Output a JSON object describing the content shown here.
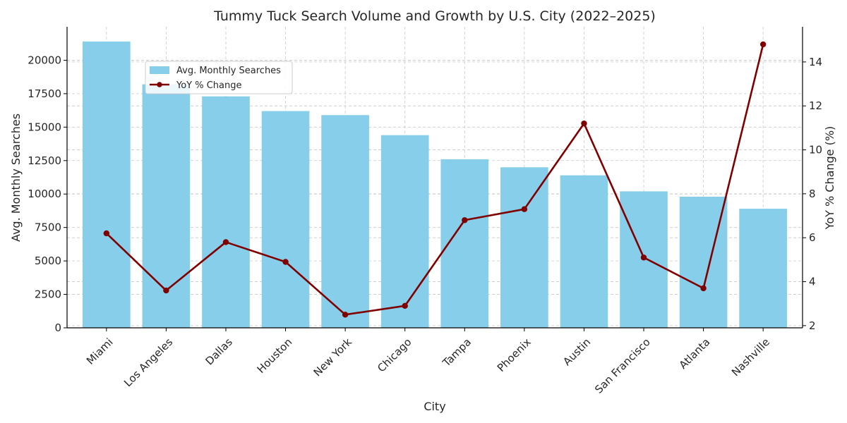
{
  "chart_data": {
    "type": "bar",
    "title": "Tummy Tuck Search Volume and Growth by U.S. City (2022–2025)",
    "xlabel": "City",
    "ylabel": "Avg. Monthly Searches",
    "y2label": "YoY % Change (%)",
    "categories": [
      "Miami",
      "Los Angeles",
      "Dallas",
      "Houston",
      "New York",
      "Chicago",
      "Tampa",
      "Phoenix",
      "Austin",
      "San Francisco",
      "Atlanta",
      "Nashville"
    ],
    "series": [
      {
        "name": "Avg. Monthly Searches",
        "type": "bar",
        "axis": "left",
        "color": "#87ceeb",
        "values": [
          21400,
          18200,
          17300,
          16200,
          15900,
          14400,
          12600,
          12000,
          11400,
          10200,
          9800,
          8900
        ]
      },
      {
        "name": "YoY % Change",
        "type": "line",
        "axis": "right",
        "color": "#800000",
        "values": [
          6.2,
          3.6,
          5.8,
          4.9,
          2.5,
          2.9,
          6.8,
          7.3,
          11.2,
          5.1,
          3.7,
          14.8
        ]
      }
    ],
    "ylim": [
      0,
      22500
    ],
    "yticks": [
      "0",
      "2500",
      "5000",
      "7500",
      "10000",
      "12500",
      "15000",
      "17500",
      "20000"
    ],
    "y2lim": [
      1.9,
      15.6
    ],
    "y2ticks": [
      "2",
      "4",
      "6",
      "8",
      "10",
      "12",
      "14"
    ],
    "grid": true,
    "legend_position": "upper-left"
  }
}
